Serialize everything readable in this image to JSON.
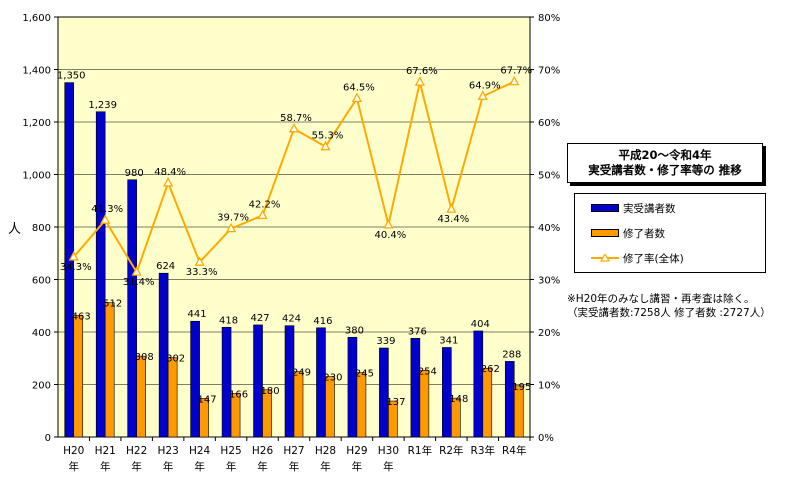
{
  "chart_data": {
    "type": "bar+line",
    "title_lines": [
      "平成20～令和4年",
      "実受講者数・修了率等の 推移"
    ],
    "categories": [
      [
        "H20",
        "年"
      ],
      [
        "H21",
        "年"
      ],
      [
        "H22",
        "年"
      ],
      [
        "H23",
        "年"
      ],
      [
        "H24",
        "年"
      ],
      [
        "H25",
        "年"
      ],
      [
        "H26",
        "年"
      ],
      [
        "H27",
        "年"
      ],
      [
        "H28",
        "年"
      ],
      [
        "H29",
        "年"
      ],
      [
        "H30",
        "年"
      ],
      [
        "R1年"
      ],
      [
        "R2年"
      ],
      [
        "R3年"
      ],
      [
        "R4年"
      ]
    ],
    "ylabel": "人",
    "ylim": [
      0,
      1600
    ],
    "yticks": [
      "0",
      "200",
      "400",
      "600",
      "800",
      "1,000",
      "1,200",
      "1,400",
      "1,600"
    ],
    "y2lim": [
      0,
      80
    ],
    "y2ticks": [
      "0%",
      "10%",
      "20%",
      "30%",
      "40%",
      "50%",
      "60%",
      "70%",
      "80%"
    ],
    "grid": true,
    "legend_position": "right",
    "series": [
      {
        "name": "実受講者数",
        "type": "bar",
        "axis": "left",
        "color": "#0000cc",
        "values": [
          1350,
          1239,
          980,
          624,
          441,
          418,
          427,
          424,
          416,
          380,
          339,
          376,
          341,
          404,
          288
        ],
        "labels": [
          "1,350",
          "1,239",
          "980",
          "624",
          "441",
          "418",
          "427",
          "424",
          "416",
          "380",
          "339",
          "376",
          "341",
          "404",
          "288"
        ]
      },
      {
        "name": "修了者数",
        "type": "bar",
        "axis": "left",
        "color": "#ff9900",
        "values": [
          463,
          512,
          308,
          302,
          147,
          166,
          180,
          249,
          230,
          245,
          137,
          254,
          148,
          262,
          195
        ],
        "labels": [
          "463",
          "512",
          "308",
          "302",
          "147",
          "166",
          "180",
          "249",
          "230",
          "245",
          "137",
          "254",
          "148",
          "262",
          "195"
        ]
      },
      {
        "name": "修了率(全体)",
        "type": "line",
        "axis": "right",
        "color": "#ffaa00",
        "values": [
          34.3,
          41.3,
          31.4,
          48.4,
          33.3,
          39.7,
          42.2,
          58.7,
          55.3,
          64.5,
          40.4,
          67.6,
          43.4,
          64.9,
          67.7
        ],
        "labels": [
          "34.3%",
          "41.3%",
          "31.4%",
          "48.4%",
          "33.3%",
          "39.7%",
          "42.2%",
          "58.7%",
          "55.3%",
          "64.5%",
          "40.4%",
          "67.6%",
          "43.4%",
          "64.9%",
          "67.7%"
        ]
      }
    ],
    "note_lines": [
      "※H20年のみなし講習・再考査は除く。",
      "（実受講者数:7258人  修了者数 :2727人）"
    ]
  }
}
